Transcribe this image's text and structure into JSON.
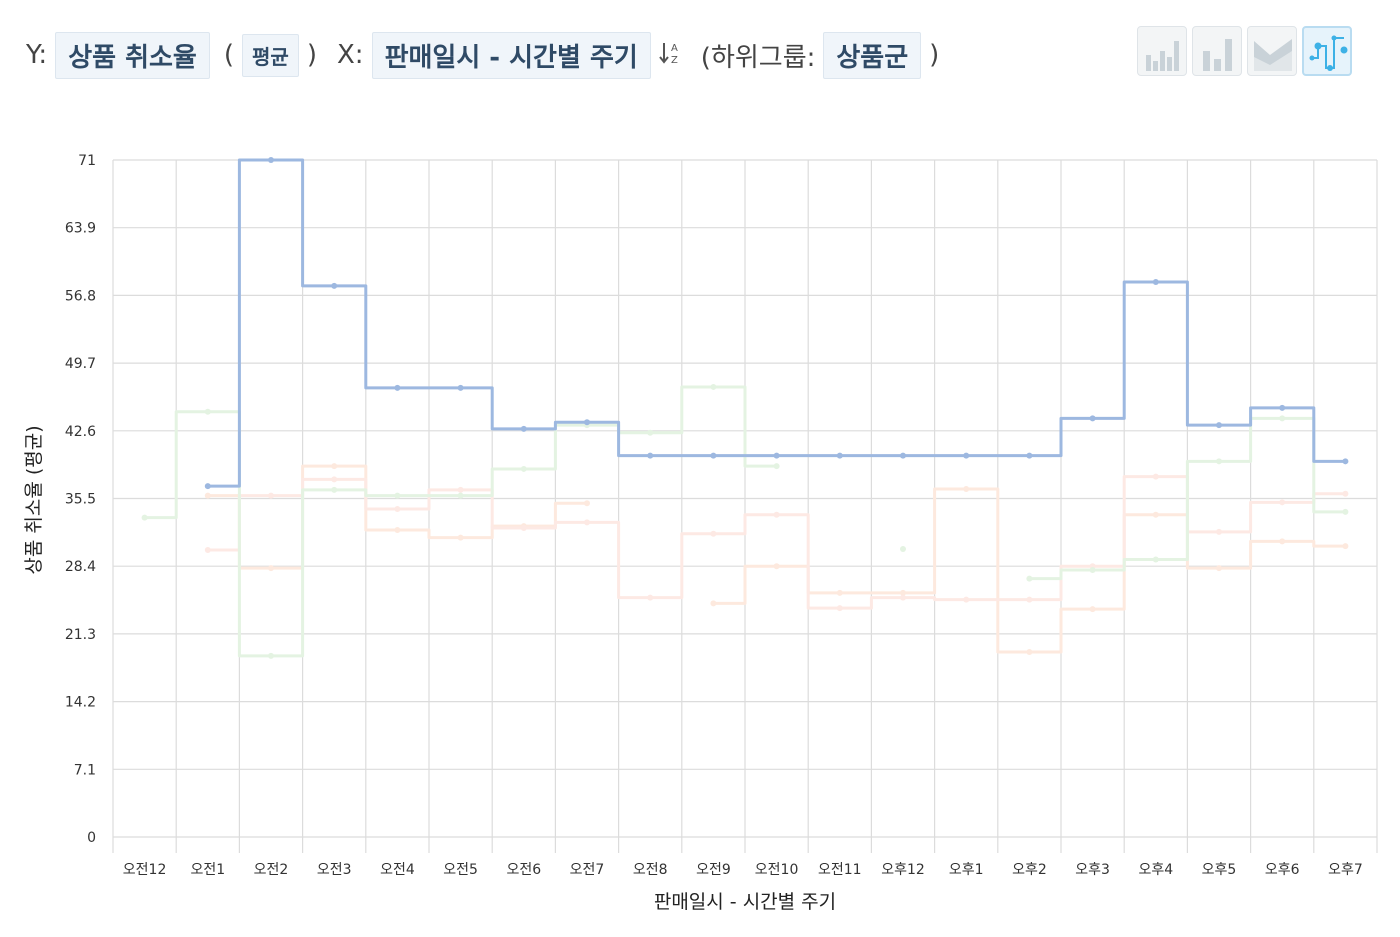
{
  "toolbar": {
    "y_prefix": "Y:",
    "y_field": "상품 취소율",
    "agg_open": "(",
    "aggregation": "평균",
    "agg_close": ")",
    "x_prefix": "X:",
    "x_field": "판매일시 - 시간별 주기",
    "sort_icon": "sort-az-icon",
    "subgroup_prefix": "(하위그룹:",
    "subgroup_field": "상품군",
    "subgroup_close": ")"
  },
  "chart_types": [
    {
      "name": "bar-chart-icon",
      "active": false
    },
    {
      "name": "column-chart-icon",
      "active": false
    },
    {
      "name": "area-chart-icon",
      "active": false
    },
    {
      "name": "step-line-chart-icon",
      "active": true
    }
  ],
  "chart_data": {
    "type": "line",
    "step": true,
    "xlabel": "판매일시 - 시간별 주기",
    "ylabel": "상품 취소율 (평균)",
    "categories": [
      "오전12",
      "오전1",
      "오전2",
      "오전3",
      "오전4",
      "오전5",
      "오전6",
      "오전7",
      "오전8",
      "오전9",
      "오전10",
      "오전11",
      "오후12",
      "오후1",
      "오후2",
      "오후3",
      "오후4",
      "오후5",
      "오후6",
      "오후7"
    ],
    "yticks": [
      "0",
      "7.1",
      "14.2",
      "21.3",
      "28.4",
      "35.5",
      "42.6",
      "49.7",
      "56.8",
      "63.9",
      "71"
    ],
    "ylim": [
      0,
      71
    ],
    "grid": true,
    "series": [
      {
        "color": "#9db8e0",
        "width": 3,
        "values": [
          null,
          36.8,
          71,
          57.8,
          47.1,
          47.1,
          42.8,
          43.5,
          40.0,
          40.0,
          40.0,
          40.0,
          40.0,
          40.0,
          40.0,
          43.9,
          58.2,
          43.2,
          45.0,
          39.4
        ]
      },
      {
        "color": "#e4f3e2",
        "width": 3,
        "values": [
          33.5,
          44.6,
          19.0,
          36.4,
          35.8,
          35.8,
          38.6,
          43.2,
          42.4,
          47.2,
          38.9,
          null,
          30.2,
          null,
          27.1,
          28.0,
          29.1,
          39.4,
          43.9,
          34.1
        ]
      },
      {
        "color": "#fde9e4",
        "width": 3,
        "values": [
          null,
          30.1,
          35.8,
          37.5,
          34.4,
          36.4,
          32.4,
          33.0,
          25.1,
          31.8,
          33.8,
          24.0,
          25.1,
          24.9,
          24.9,
          28.4,
          37.8,
          32.0,
          35.1,
          36.0
        ]
      },
      {
        "color": "#fde9de",
        "width": 3,
        "values": [
          null,
          35.8,
          28.2,
          38.9,
          32.2,
          31.4,
          32.6,
          35.0,
          null,
          24.5,
          28.4,
          25.6,
          25.6,
          36.5,
          19.4,
          23.9,
          33.8,
          28.2,
          31.0,
          30.5
        ]
      }
    ]
  }
}
